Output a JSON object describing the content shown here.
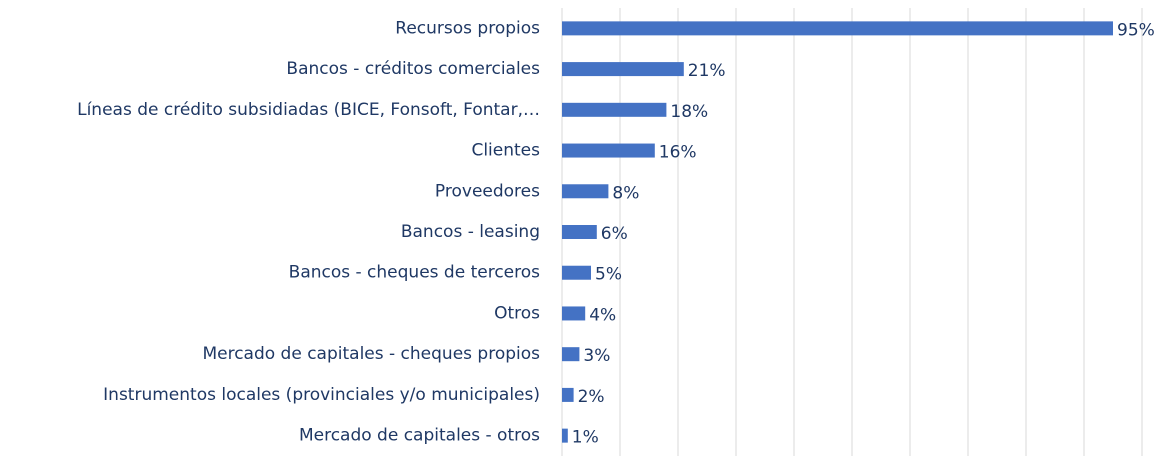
{
  "chart_data": {
    "type": "hbar",
    "categories": [
      "Recursos propios",
      "Bancos - créditos comerciales",
      "Líneas de crédito subsidiadas (BICE, Fonsoft, Fontar,…",
      "Clientes",
      "Proveedores",
      "Bancos - leasing",
      "Bancos - cheques de terceros",
      "Otros",
      "Mercado de capitales - cheques propios",
      "Instrumentos locales (provinciales y/o municipales)",
      "Mercado de capitales - otros"
    ],
    "values": [
      95,
      21,
      18,
      16,
      8,
      6,
      5,
      4,
      3,
      2,
      1
    ],
    "value_labels": [
      "95%",
      "21%",
      "18%",
      "16%",
      "8%",
      "6%",
      "5%",
      "4%",
      "3%",
      "2%",
      "1%"
    ],
    "color": "#4472c4",
    "xlim": [
      0,
      100
    ],
    "xticks": [
      0,
      10,
      20,
      30,
      40,
      50,
      60,
      70,
      80,
      90,
      100
    ],
    "grid": true
  }
}
